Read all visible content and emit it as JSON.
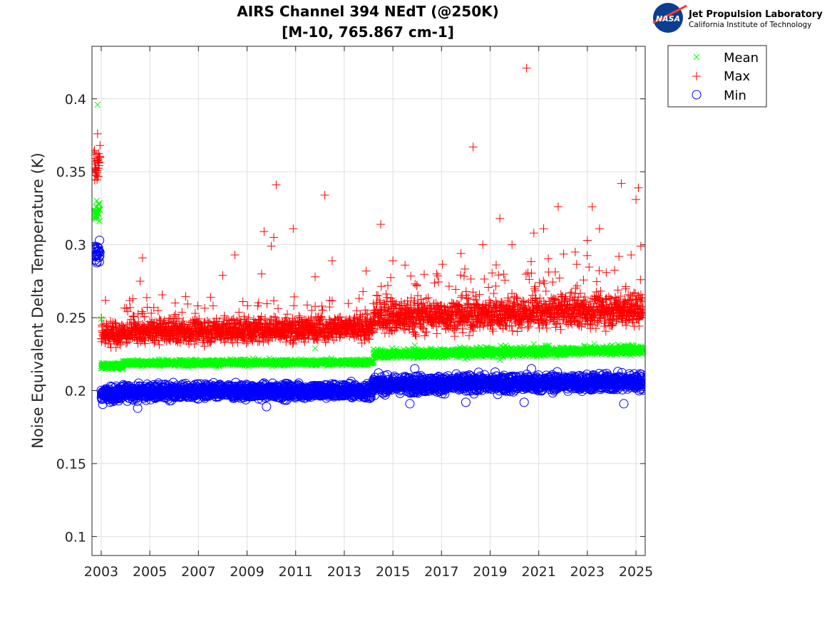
{
  "logo": {
    "nasa": "NASA",
    "line1": "Jet Propulsion Laboratory",
    "line2": "California Institute of Technology"
  },
  "chart_data": {
    "type": "scatter",
    "title": [
      "AIRS Channel 394 NEdT (@250K)",
      "[M-10, 765.867 cm-1]"
    ],
    "xlabel": "",
    "ylabel": "Noise Equivalent Delta Temperature (K)",
    "xlim": [
      2002.62,
      2025.38
    ],
    "ylim": [
      0.087,
      0.436
    ],
    "xticks": [
      2003,
      2005,
      2007,
      2009,
      2011,
      2013,
      2015,
      2017,
      2019,
      2021,
      2023,
      2025
    ],
    "xtick_labels": [
      "2003",
      "2005",
      "2007",
      "2009",
      "2011",
      "2013",
      "2015",
      "2017",
      "2019",
      "2021",
      "2023",
      "2025"
    ],
    "yticks": [
      0.1,
      0.15,
      0.2,
      0.25,
      0.3,
      0.35,
      0.4
    ],
    "ytick_labels": [
      "0.1",
      "0.15",
      "0.2",
      "0.25",
      "0.3",
      "0.35",
      "0.4"
    ],
    "grid": true,
    "legend": {
      "placement": "outside-top-right",
      "entries": [
        "Mean",
        "Max",
        "Min"
      ]
    },
    "series": [
      {
        "name": "Mean",
        "marker": "x",
        "color": "#00ff00",
        "segments": [
          {
            "x": [
              2002.7,
              2002.95
            ],
            "level": [
              0.323,
              0.323
            ],
            "spread": 0.003
          },
          {
            "x": [
              2003.0,
              2003.9
            ],
            "level": [
              0.217,
              0.217
            ],
            "spread": 0.001
          },
          {
            "x": [
              2003.9,
              2014.2
            ],
            "level": [
              0.219,
              0.2195
            ],
            "spread": 0.001
          },
          {
            "x": [
              2014.2,
              2025.3
            ],
            "level": [
              0.225,
              0.228
            ],
            "spread": 0.0015
          }
        ],
        "outliers": [
          [
            2002.85,
            0.396
          ],
          [
            2003.0,
            0.249
          ],
          [
            2011.8,
            0.229
          ],
          [
            2015.9,
            0.231
          ],
          [
            2019.4,
            0.221
          ],
          [
            2020.8,
            0.232
          ],
          [
            2023.3,
            0.232
          ]
        ]
      },
      {
        "name": "Max",
        "marker": "+",
        "color": "#ff0000",
        "segments": [
          {
            "x": [
              2002.7,
              2002.95
            ],
            "level": [
              0.355,
              0.355
            ],
            "spread": 0.006
          },
          {
            "x": [
              2003.0,
              2003.9
            ],
            "level": [
              0.238,
              0.239
            ],
            "spread": 0.004
          },
          {
            "x": [
              2003.9,
              2014.2
            ],
            "level": [
              0.24,
              0.243
            ],
            "spread": 0.004
          },
          {
            "x": [
              2014.2,
              2025.3
            ],
            "level": [
              0.25,
              0.256
            ],
            "spread": 0.0055
          }
        ],
        "outliers": [
          [
            2002.85,
            0.376
          ],
          [
            2002.95,
            0.368
          ],
          [
            2004.3,
            0.263
          ],
          [
            2004.6,
            0.275
          ],
          [
            2004.7,
            0.291
          ],
          [
            2007.5,
            0.264
          ],
          [
            2008.0,
            0.279
          ],
          [
            2008.5,
            0.293
          ],
          [
            2009.7,
            0.309
          ],
          [
            2009.6,
            0.28
          ],
          [
            2010.0,
            0.299
          ],
          [
            2010.1,
            0.305
          ],
          [
            2010.2,
            0.341
          ],
          [
            2010.9,
            0.311
          ],
          [
            2011.8,
            0.278
          ],
          [
            2012.2,
            0.334
          ],
          [
            2012.5,
            0.289
          ],
          [
            2013.9,
            0.282
          ],
          [
            2014.5,
            0.314
          ],
          [
            2015.0,
            0.289
          ],
          [
            2015.5,
            0.286
          ],
          [
            2016.8,
            0.28
          ],
          [
            2017.8,
            0.294
          ],
          [
            2018.3,
            0.367
          ],
          [
            2018.7,
            0.3
          ],
          [
            2019.4,
            0.318
          ],
          [
            2019.9,
            0.3
          ],
          [
            2020.5,
            0.421
          ],
          [
            2020.8,
            0.308
          ],
          [
            2021.2,
            0.311
          ],
          [
            2021.8,
            0.326
          ],
          [
            2022.5,
            0.295
          ],
          [
            2023.0,
            0.303
          ],
          [
            2023.2,
            0.326
          ],
          [
            2023.5,
            0.311
          ],
          [
            2024.3,
            0.292
          ],
          [
            2024.4,
            0.342
          ],
          [
            2024.8,
            0.293
          ],
          [
            2025.0,
            0.331
          ],
          [
            2025.1,
            0.339
          ],
          [
            2025.2,
            0.299
          ]
        ]
      },
      {
        "name": "Min",
        "marker": "o",
        "color": "#0000ff",
        "segments": [
          {
            "x": [
              2002.7,
              2002.95
            ],
            "level": [
              0.294,
              0.294
            ],
            "spread": 0.004
          },
          {
            "x": [
              2003.0,
              2003.9
            ],
            "level": [
              0.197,
              0.198
            ],
            "spread": 0.0025
          },
          {
            "x": [
              2003.9,
              2014.2
            ],
            "level": [
              0.199,
              0.2
            ],
            "spread": 0.0025
          },
          {
            "x": [
              2014.2,
              2025.3
            ],
            "level": [
              0.204,
              0.206
            ],
            "spread": 0.0028
          }
        ],
        "outliers": [
          [
            2004.5,
            0.188
          ],
          [
            2009.8,
            0.189
          ],
          [
            2015.7,
            0.191
          ],
          [
            2018.0,
            0.192
          ],
          [
            2020.4,
            0.192
          ],
          [
            2024.5,
            0.191
          ],
          [
            2015.9,
            0.215
          ],
          [
            2020.7,
            0.215
          ]
        ]
      }
    ]
  }
}
